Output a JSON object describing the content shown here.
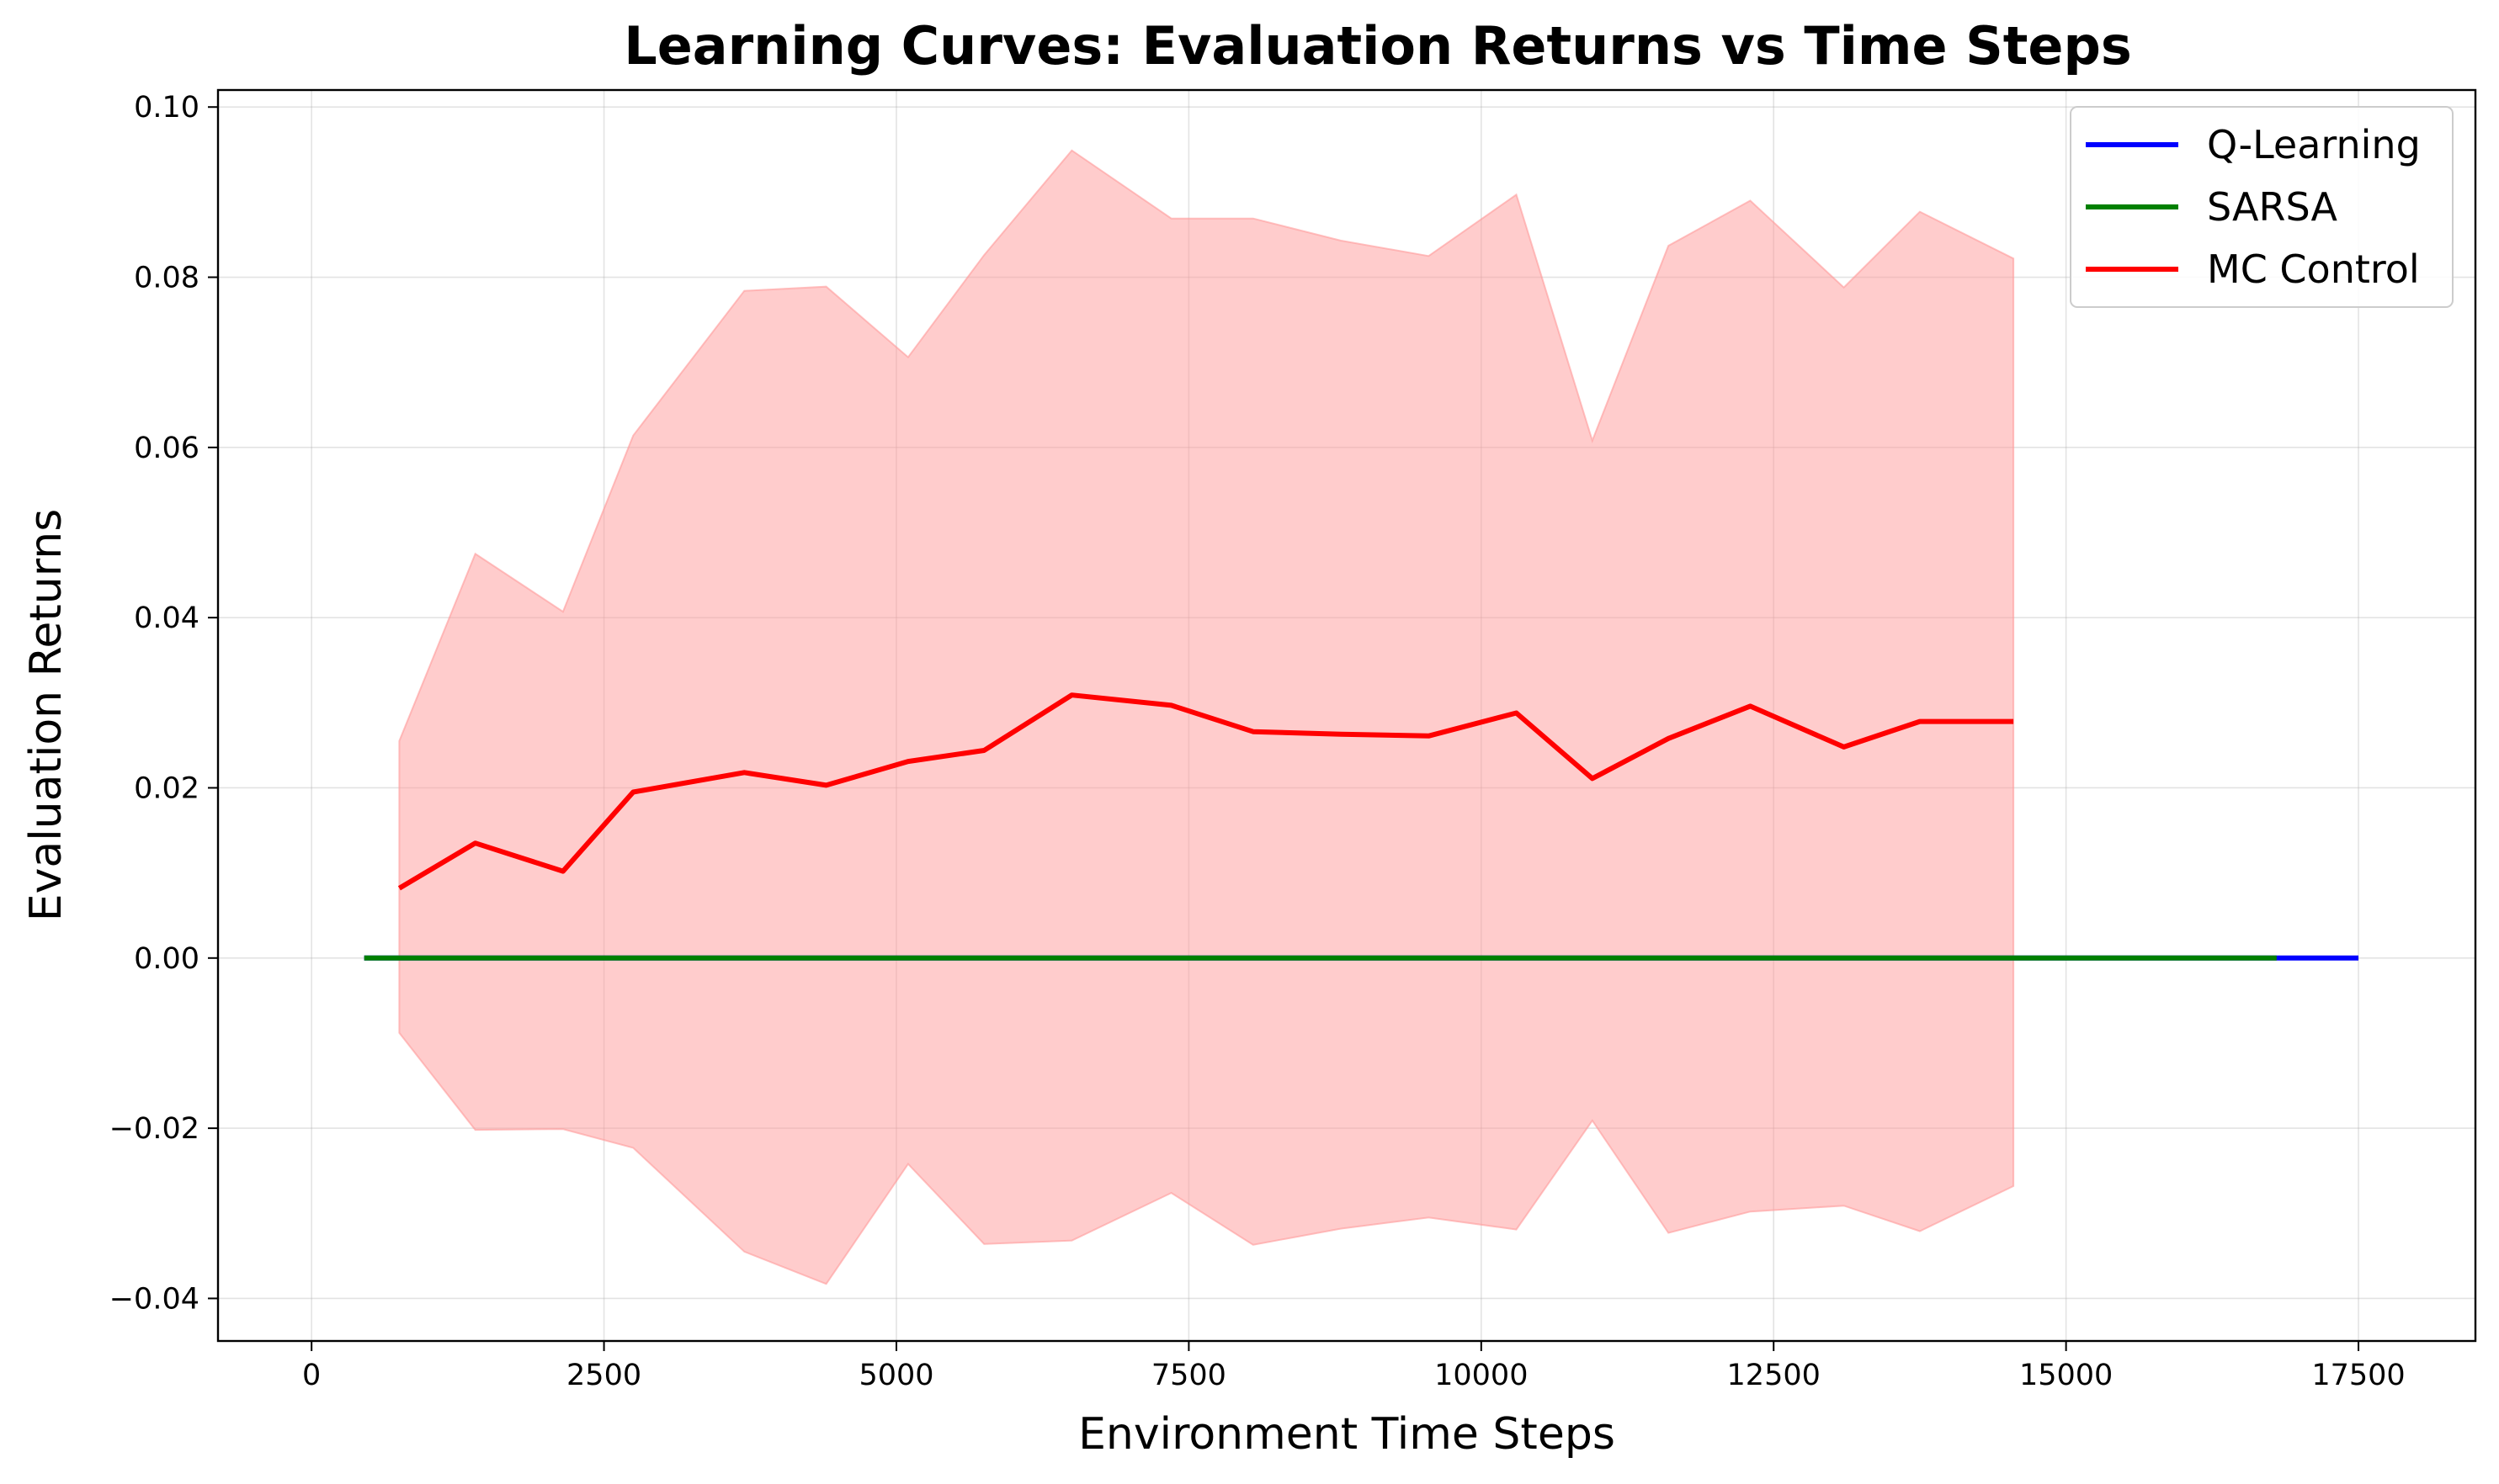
{
  "chart_data": {
    "type": "line",
    "title": "Learning Curves: Evaluation Returns vs Time Steps",
    "xlabel": "Environment Time Steps",
    "ylabel": "Evaluation Returns",
    "xlim": [
      -800,
      18500
    ],
    "ylim": [
      -0.045,
      0.102
    ],
    "grid": true,
    "legend_position": "top-right",
    "x_ticks": [
      {
        "value": 0,
        "label": "0"
      },
      {
        "value": 2500,
        "label": "2500"
      },
      {
        "value": 5000,
        "label": "5000"
      },
      {
        "value": 7500,
        "label": "7500"
      },
      {
        "value": 10000,
        "label": "10000"
      },
      {
        "value": 12500,
        "label": "12500"
      },
      {
        "value": 15000,
        "label": "15000"
      },
      {
        "value": 17500,
        "label": "17500"
      }
    ],
    "y_ticks": [
      {
        "value": 0.1,
        "label": "0.10"
      },
      {
        "value": 0.08,
        "label": "0.08"
      },
      {
        "value": 0.06,
        "label": "0.06"
      },
      {
        "value": 0.04,
        "label": "0.04"
      },
      {
        "value": 0.02,
        "label": "0.02"
      },
      {
        "value": 0.0,
        "label": "0.00"
      },
      {
        "value": -0.02,
        "label": "−0.02"
      },
      {
        "value": -0.04,
        "label": "−0.04"
      }
    ],
    "series": [
      {
        "name": "Q-Learning",
        "color": "#0000ff",
        "x": [
          450,
          17500
        ],
        "y": [
          0.0,
          0.0
        ]
      },
      {
        "name": "SARSA",
        "color": "#008000",
        "x": [
          450,
          16800
        ],
        "y": [
          0.0,
          0.0
        ]
      },
      {
        "name": "MC Control",
        "color": "#ff0000",
        "band_color": "#ff9999",
        "x": [
          750,
          1400,
          2150,
          2750,
          3700,
          4400,
          5100,
          5750,
          6500,
          7350,
          8050,
          8800,
          9550,
          10300,
          10950,
          11600,
          12300,
          13100,
          13750,
          14550
        ],
        "y": [
          0.0082,
          0.0135,
          0.0102,
          0.0195,
          0.0218,
          0.0203,
          0.0231,
          0.0244,
          0.0309,
          0.0297,
          0.0266,
          0.0263,
          0.0261,
          0.0288,
          0.0211,
          0.0258,
          0.0296,
          0.0248,
          0.0278,
          0.0278
        ],
        "upper": [
          0.0255,
          0.0475,
          0.0407,
          0.0614,
          0.0784,
          0.0789,
          0.0706,
          0.0826,
          0.0949,
          0.0869,
          0.0869,
          0.0843,
          0.0825,
          0.0897,
          0.0608,
          0.0837,
          0.089,
          0.0788,
          0.0877,
          0.0822
        ],
        "lower": [
          -0.0088,
          -0.0202,
          -0.0201,
          -0.0223,
          -0.0345,
          -0.0383,
          -0.0242,
          -0.0336,
          -0.0332,
          -0.0276,
          -0.0337,
          -0.0318,
          -0.0305,
          -0.0319,
          -0.0191,
          -0.0323,
          -0.0298,
          -0.0291,
          -0.0321,
          -0.0268
        ]
      }
    ]
  }
}
